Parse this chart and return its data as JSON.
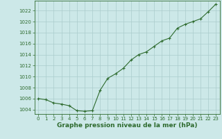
{
  "x": [
    0,
    1,
    2,
    3,
    4,
    5,
    6,
    7,
    8,
    9,
    10,
    11,
    12,
    13,
    14,
    15,
    16,
    17,
    18,
    19,
    20,
    21,
    22,
    23
  ],
  "y": [
    1006.0,
    1005.8,
    1005.2,
    1005.0,
    1004.7,
    1003.8,
    1003.7,
    1003.8,
    1007.5,
    1009.7,
    1010.5,
    1011.5,
    1013.0,
    1014.0,
    1014.5,
    1015.5,
    1016.5,
    1017.0,
    1018.8,
    1019.5,
    1020.0,
    1020.5,
    1021.8,
    1023.2
  ],
  "line_color": "#2d6a2d",
  "marker": "+",
  "background_color": "#cce8e8",
  "grid_color": "#aacccc",
  "xlabel": "Graphe pression niveau de la mer (hPa)",
  "xlabel_color": "#2d6a2d",
  "ylabel_ticks": [
    1004,
    1006,
    1008,
    1010,
    1012,
    1014,
    1016,
    1018,
    1020,
    1022
  ],
  "ylim": [
    1003.2,
    1023.8
  ],
  "xlim": [
    -0.5,
    23.5
  ],
  "xticks": [
    0,
    1,
    2,
    3,
    4,
    5,
    6,
    7,
    8,
    9,
    10,
    11,
    12,
    13,
    14,
    15,
    16,
    17,
    18,
    19,
    20,
    21,
    22,
    23
  ],
  "tick_color": "#2d6a2d",
  "tick_fontsize": 5.0,
  "xlabel_fontsize": 6.5,
  "linewidth": 0.8,
  "markersize": 3,
  "markeredgewidth": 0.8
}
